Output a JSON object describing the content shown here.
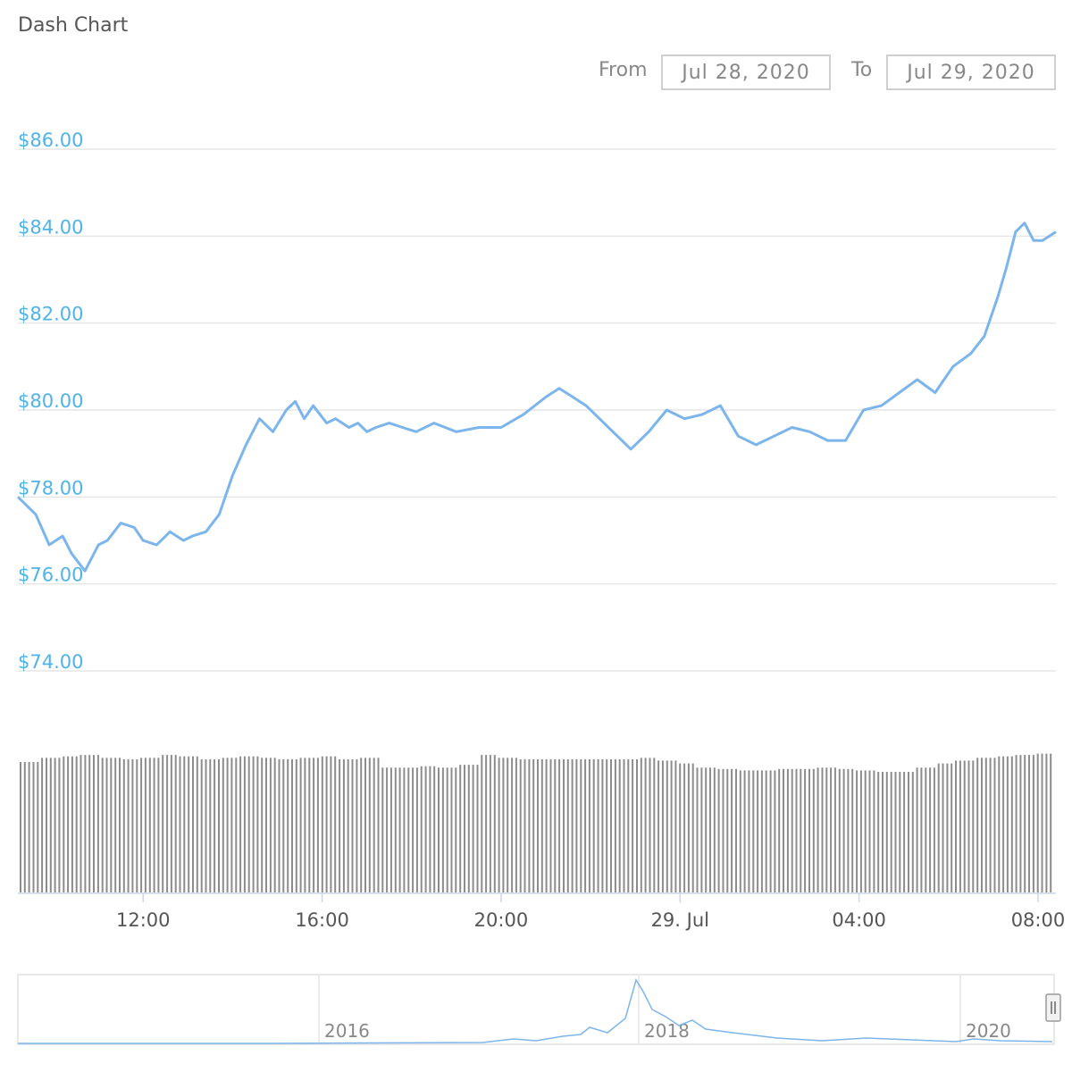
{
  "title": "Dash Chart",
  "range": {
    "from_label": "From",
    "from_value": "Jul 28, 2020",
    "to_label": "To",
    "to_value": "Jul 29, 2020"
  },
  "colors": {
    "line": "#7cb5ec",
    "axis_text": "#4fb3e8",
    "grid": "#e6e6e6",
    "volume": "#8c8c8c"
  },
  "chart_data": {
    "type": "line",
    "title": "Dash Chart",
    "ylim": [
      74,
      86
    ],
    "y_ticks": [
      "$74.00",
      "$76.00",
      "$78.00",
      "$80.00",
      "$82.00",
      "$84.00",
      "$86.00"
    ],
    "y_tick_values": [
      74,
      76,
      78,
      80,
      82,
      84,
      86
    ],
    "x_range_hours": [
      9.2,
      32.4
    ],
    "x_ticks": [
      "12:00",
      "16:00",
      "20:00",
      "29. Jul",
      "04:00",
      "08:00"
    ],
    "x_tick_hours": [
      12,
      16,
      20,
      24,
      28,
      32
    ],
    "grid": true,
    "series": [
      {
        "x_hours": [
          9.2,
          9.6,
          9.9,
          10.2,
          10.4,
          10.7,
          11.0,
          11.2,
          11.5,
          11.8,
          12.0,
          12.3,
          12.6,
          12.9,
          13.1,
          13.4,
          13.7,
          14.0,
          14.3,
          14.6,
          14.9,
          15.2,
          15.4,
          15.6,
          15.8,
          16.1,
          16.3,
          16.6,
          16.8,
          17.0,
          17.2,
          17.5,
          17.8,
          18.1,
          18.5,
          19.0,
          19.5,
          20.0,
          20.5,
          21.0,
          21.3,
          21.6,
          21.9,
          22.2,
          22.5,
          22.9,
          23.3,
          23.7,
          24.1,
          24.5,
          24.9,
          25.3,
          25.7,
          26.1,
          26.5,
          26.9,
          27.3,
          27.7,
          28.1,
          28.5,
          28.9,
          29.3,
          29.7,
          30.1,
          30.5,
          30.8,
          31.1,
          31.3,
          31.5,
          31.7,
          31.9,
          32.1,
          32.4
        ],
        "values": [
          78.0,
          77.6,
          76.9,
          77.1,
          76.7,
          76.3,
          76.9,
          77.0,
          77.4,
          77.3,
          77.0,
          76.9,
          77.2,
          77.0,
          77.1,
          77.2,
          77.6,
          78.5,
          79.2,
          79.8,
          79.5,
          80.0,
          80.2,
          79.8,
          80.1,
          79.7,
          79.8,
          79.6,
          79.7,
          79.5,
          79.6,
          79.7,
          79.6,
          79.5,
          79.7,
          79.5,
          79.6,
          79.6,
          79.9,
          80.3,
          80.5,
          80.3,
          80.1,
          79.8,
          79.5,
          79.1,
          79.5,
          80.0,
          79.8,
          79.9,
          80.1,
          79.4,
          79.2,
          79.4,
          79.6,
          79.5,
          79.3,
          79.3,
          80.0,
          80.1,
          80.4,
          80.7,
          80.4,
          81.0,
          81.3,
          81.7,
          82.6,
          83.3,
          84.1,
          84.3,
          83.9,
          83.9,
          84.1
        ]
      }
    ],
    "volume_relative": [
      0.93,
      0.96,
      0.97,
      0.98,
      0.96,
      0.95,
      0.96,
      0.98,
      0.97,
      0.95,
      0.96,
      0.97,
      0.96,
      0.95,
      0.96,
      0.97,
      0.95,
      0.96,
      0.89,
      0.89,
      0.9,
      0.89,
      0.91,
      0.98,
      0.96,
      0.95,
      0.95,
      0.95,
      0.95,
      0.95,
      0.95,
      0.96,
      0.94,
      0.92,
      0.89,
      0.88,
      0.87,
      0.87,
      0.88,
      0.88,
      0.89,
      0.88,
      0.87,
      0.86,
      0.86,
      0.89,
      0.92,
      0.94,
      0.96,
      0.97,
      0.98,
      0.99
    ],
    "navigator": {
      "x_ticks": [
        "2016",
        "2018",
        "2020"
      ]
    }
  }
}
